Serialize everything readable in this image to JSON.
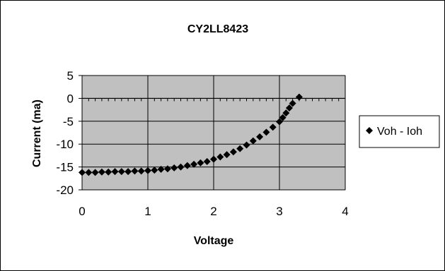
{
  "chart_data": {
    "type": "scatter",
    "title": "CY2LL8423",
    "xlabel": "Voltage",
    "ylabel": "Current (ma)",
    "xlim": [
      0,
      4
    ],
    "ylim": [
      -20,
      5
    ],
    "x_ticks": [
      "0",
      "1",
      "2",
      "3",
      "4"
    ],
    "y_ticks": [
      "5",
      "0",
      "-5",
      "-10",
      "-15",
      "-20"
    ],
    "grid": "major vertical and horizontal",
    "plot_background": "#c0c0c0",
    "marker": "diamond",
    "marker_color": "#000000",
    "legend_position": "right",
    "series": [
      {
        "name": "Voh - Ioh",
        "x": [
          0.0,
          0.1,
          0.2,
          0.3,
          0.4,
          0.5,
          0.6,
          0.7,
          0.8,
          0.9,
          1.0,
          1.1,
          1.2,
          1.3,
          1.4,
          1.5,
          1.6,
          1.7,
          1.8,
          1.9,
          2.0,
          2.1,
          2.2,
          2.3,
          2.4,
          2.5,
          2.6,
          2.7,
          2.8,
          2.9,
          3.0,
          3.05,
          3.1,
          3.15,
          3.2,
          3.3
        ],
        "y": [
          -16.2,
          -16.2,
          -16.2,
          -16.1,
          -16.1,
          -16.0,
          -16.0,
          -16.0,
          -15.9,
          -15.9,
          -15.8,
          -15.7,
          -15.5,
          -15.4,
          -15.2,
          -15.0,
          -14.7,
          -14.4,
          -14.1,
          -13.8,
          -13.3,
          -12.8,
          -12.3,
          -11.7,
          -11.0,
          -10.2,
          -9.3,
          -8.4,
          -7.4,
          -6.3,
          -5.1,
          -4.2,
          -3.2,
          -2.1,
          -1.1,
          0.3
        ]
      }
    ]
  }
}
